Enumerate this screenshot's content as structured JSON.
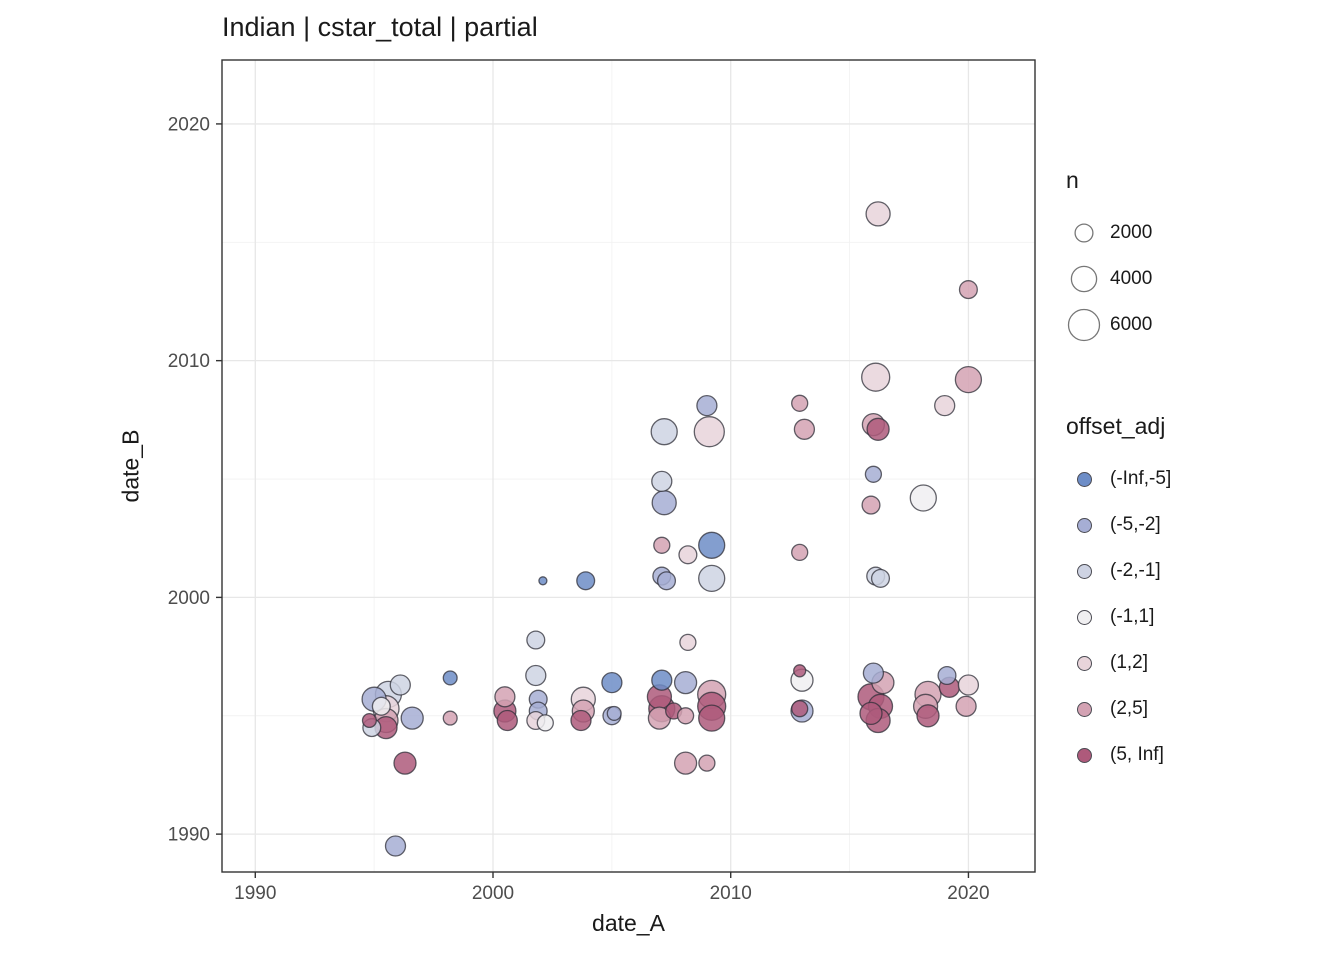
{
  "chart_data": {
    "type": "scatter",
    "title": "Indian | cstar_total | partial",
    "xlabel": "date_A",
    "ylabel": "date_B",
    "x_domain": [
      1988.6,
      2022.8
    ],
    "y_domain": [
      1988.4,
      2022.7
    ],
    "x_ticks": [
      1990,
      2000,
      2010,
      2020
    ],
    "y_ticks": [
      1990,
      2000,
      2010,
      2020
    ],
    "x_minor_ticks": [
      1995,
      2005,
      2015
    ],
    "y_minor_ticks": [
      1995,
      2005,
      2015
    ],
    "grid": true,
    "legend_position": "right",
    "size_legend": {
      "title": "n",
      "values": [
        2000,
        4000,
        6000
      ]
    },
    "color_legend": {
      "title": "offset_adj",
      "categories": [
        {
          "label": "(-Inf,-5]",
          "color": "#6d8dc7"
        },
        {
          "label": "(-5,-2]",
          "color": "#a6aed4"
        },
        {
          "label": "(-2,-1]",
          "color": "#ced3e3"
        },
        {
          "label": "(-1,1]",
          "color": "#f0eff1"
        },
        {
          "label": "(1,2]",
          "color": "#e8d4da"
        },
        {
          "label": "(2,5]",
          "color": "#d3a2b3"
        },
        {
          "label": "(5, Inf]",
          "color": "#ae5a7b"
        }
      ]
    },
    "point_format": [
      "date_A",
      "date_B",
      "n",
      "offset_adj_category_index"
    ],
    "points": [
      [
        1995.0,
        1995.7,
        3600,
        1
      ],
      [
        1995.3,
        1995.4,
        2000,
        3
      ],
      [
        1995.6,
        1995.9,
        4200,
        2
      ],
      [
        1996.1,
        1996.3,
        2500,
        2
      ],
      [
        1995.5,
        1995.3,
        4200,
        4
      ],
      [
        1995.5,
        1994.8,
        3600,
        5
      ],
      [
        1995.5,
        1994.5,
        3000,
        6
      ],
      [
        1994.8,
        1994.8,
        1200,
        6
      ],
      [
        1994.9,
        1994.5,
        2000,
        2
      ],
      [
        1996.6,
        1994.9,
        3000,
        1
      ],
      [
        1998.2,
        1996.6,
        1200,
        0
      ],
      [
        1998.2,
        1994.9,
        1200,
        5
      ],
      [
        1996.3,
        1993.0,
        3000,
        6
      ],
      [
        1995.9,
        1989.5,
        2500,
        1
      ],
      [
        2000.5,
        1995.8,
        2500,
        5
      ],
      [
        2000.5,
        1995.2,
        3000,
        6
      ],
      [
        2000.6,
        1994.8,
        2500,
        6
      ],
      [
        2001.9,
        1995.7,
        2000,
        1
      ],
      [
        2001.9,
        1995.2,
        2000,
        1
      ],
      [
        2001.8,
        1994.8,
        2000,
        4
      ],
      [
        2002.2,
        1994.7,
        1600,
        3
      ],
      [
        2001.8,
        1998.2,
        2000,
        2
      ],
      [
        2001.8,
        1996.7,
        2500,
        2
      ],
      [
        2002.1,
        2000.7,
        400,
        0
      ],
      [
        2003.9,
        2000.7,
        2000,
        0
      ],
      [
        2003.8,
        1995.7,
        3600,
        4
      ],
      [
        2003.8,
        1995.2,
        3000,
        5
      ],
      [
        2003.7,
        1994.8,
        2500,
        6
      ],
      [
        2005.0,
        1996.4,
        2500,
        0
      ],
      [
        2005.0,
        1995.0,
        2000,
        1
      ],
      [
        2005.1,
        1995.1,
        1200,
        1
      ],
      [
        2007.2,
        2007.0,
        4200,
        2
      ],
      [
        2009.0,
        2008.1,
        2500,
        1
      ],
      [
        2009.1,
        2007.0,
        5600,
        4
      ],
      [
        2007.1,
        2004.9,
        2500,
        2
      ],
      [
        2007.2,
        2004.0,
        3600,
        1
      ],
      [
        2007.1,
        2002.2,
        1600,
        5
      ],
      [
        2008.2,
        2001.8,
        2000,
        4
      ],
      [
        2009.2,
        2002.2,
        4200,
        0
      ],
      [
        2007.1,
        2000.9,
        2000,
        1
      ],
      [
        2007.3,
        2000.7,
        2000,
        1
      ],
      [
        2009.2,
        2000.8,
        4200,
        2
      ],
      [
        2008.2,
        1998.1,
        1600,
        4
      ],
      [
        2007.1,
        1996.5,
        2500,
        0
      ],
      [
        2008.1,
        1996.4,
        3000,
        1
      ],
      [
        2007.0,
        1995.8,
        3600,
        6
      ],
      [
        2007.1,
        1995.3,
        4200,
        6
      ],
      [
        2007.0,
        1994.9,
        3000,
        5
      ],
      [
        2007.6,
        1995.2,
        1600,
        6
      ],
      [
        2008.1,
        1995.0,
        1600,
        5
      ],
      [
        2009.2,
        1995.9,
        4900,
        5
      ],
      [
        2009.2,
        1995.4,
        4900,
        6
      ],
      [
        2009.2,
        1994.9,
        4200,
        6
      ],
      [
        2008.1,
        1993.0,
        3000,
        5
      ],
      [
        2009.0,
        1993.0,
        1600,
        5
      ],
      [
        2012.9,
        2008.2,
        1600,
        5
      ],
      [
        2013.1,
        2007.1,
        2500,
        5
      ],
      [
        2012.9,
        2001.9,
        1600,
        5
      ],
      [
        2012.9,
        1996.9,
        900,
        6
      ],
      [
        2013.0,
        1996.5,
        3000,
        3
      ],
      [
        2013.0,
        1995.2,
        3000,
        1
      ],
      [
        2012.9,
        1995.3,
        1600,
        6
      ],
      [
        2016.2,
        2016.2,
        3600,
        4
      ],
      [
        2016.1,
        2009.3,
        4900,
        4
      ],
      [
        2016.0,
        2007.3,
        3000,
        5
      ],
      [
        2016.2,
        2007.1,
        3000,
        6
      ],
      [
        2016.0,
        2005.2,
        1600,
        1
      ],
      [
        2015.9,
        2003.9,
        2000,
        5
      ],
      [
        2016.1,
        2000.9,
        2000,
        2
      ],
      [
        2016.3,
        2000.8,
        2000,
        2
      ],
      [
        2016.0,
        1996.8,
        2500,
        1
      ],
      [
        2016.4,
        1996.4,
        3000,
        5
      ],
      [
        2015.9,
        1995.8,
        4200,
        6
      ],
      [
        2016.3,
        1995.4,
        3600,
        6
      ],
      [
        2015.9,
        1995.1,
        3000,
        6
      ],
      [
        2016.2,
        1994.8,
        3600,
        6
      ],
      [
        2018.1,
        2004.2,
        4200,
        3
      ],
      [
        2019.0,
        2008.1,
        2500,
        4
      ],
      [
        2018.3,
        1995.9,
        4200,
        5
      ],
      [
        2018.2,
        1995.4,
        3600,
        5
      ],
      [
        2018.3,
        1995.0,
        3000,
        6
      ],
      [
        2019.1,
        1996.7,
        2000,
        1
      ],
      [
        2019.2,
        1996.2,
        2500,
        6
      ],
      [
        2020.0,
        1996.3,
        2500,
        4
      ],
      [
        2019.9,
        1995.4,
        2500,
        5
      ],
      [
        2020.0,
        2013.0,
        2000,
        5
      ],
      [
        2020.0,
        2009.2,
        4200,
        5
      ]
    ],
    "style": {
      "panel_background": "#ffffff",
      "panel_border": "#333333",
      "grid_major": "#e7e7e7",
      "grid_minor": "#f2f2f2",
      "tick_color": "#333333",
      "tick_label_color": "#4d4d4d",
      "text_color": "#1a1a1a",
      "point_stroke": "#2f2f38",
      "legend_circle_stroke": "#777777"
    }
  }
}
